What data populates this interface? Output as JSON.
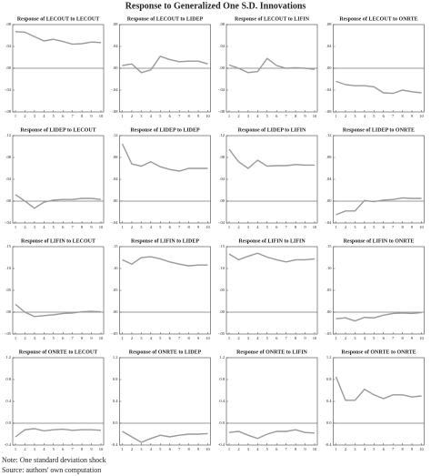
{
  "title": "Response to Generalized One S.D. Innovations",
  "notes": [
    "Note: One standard deviation shock",
    "Source: authors' own computation"
  ],
  "chart_data": [
    {
      "type": "line",
      "title": "Response of LECOUT to LECOUT",
      "x": [
        1,
        2,
        3,
        4,
        5,
        6,
        7,
        8,
        9,
        10
      ],
      "xlim": [
        1,
        10
      ],
      "xticks": [
        1,
        2,
        3,
        4,
        5,
        6,
        7,
        8,
        9,
        10
      ],
      "ylim": [
        -0.08,
        0.08
      ],
      "yticks": [
        {
          "value": 0.08,
          "label": ".08"
        },
        {
          "value": 0.04,
          "label": ".04"
        },
        {
          "value": 0,
          "label": ".00"
        },
        {
          "value": -0.04,
          "label": "-.04"
        },
        {
          "value": -0.08,
          "label": "-.08"
        }
      ],
      "color": "#999999",
      "values": [
        0.067,
        0.066,
        0.058,
        0.05,
        0.053,
        0.049,
        0.044,
        0.045,
        0.048,
        0.047
      ]
    },
    {
      "type": "line",
      "title": "Response of LECOUT to LIDEP",
      "x": [
        1,
        2,
        3,
        4,
        5,
        6,
        7,
        8,
        9,
        10
      ],
      "xlim": [
        1,
        10
      ],
      "xticks": [
        1,
        2,
        3,
        4,
        5,
        6,
        7,
        8,
        9,
        10
      ],
      "ylim": [
        -0.08,
        0.08
      ],
      "yticks": [
        {
          "value": 0.08,
          "label": ".08"
        },
        {
          "value": 0.04,
          "label": ".04"
        },
        {
          "value": 0,
          "label": ".00"
        },
        {
          "value": -0.04,
          "label": "-.04"
        },
        {
          "value": -0.08,
          "label": "-.08"
        }
      ],
      "color": "#999999",
      "values": [
        0.005,
        0.008,
        -0.008,
        -0.003,
        0.022,
        0.016,
        0.012,
        0.013,
        0.013,
        0.008
      ]
    },
    {
      "type": "line",
      "title": "Response of LECOUT to LIFIN",
      "x": [
        1,
        2,
        3,
        4,
        5,
        6,
        7,
        8,
        9,
        10
      ],
      "xlim": [
        1,
        10
      ],
      "xticks": [
        1,
        2,
        3,
        4,
        5,
        6,
        7,
        8,
        9,
        10
      ],
      "ylim": [
        -0.08,
        0.08
      ],
      "yticks": [
        {
          "value": 0.08,
          "label": ".08"
        },
        {
          "value": 0.04,
          "label": ".04"
        },
        {
          "value": 0,
          "label": ".00"
        },
        {
          "value": -0.04,
          "label": "-.04"
        },
        {
          "value": -0.08,
          "label": "-.08"
        }
      ],
      "color": "#999999",
      "values": [
        0.006,
        0.0,
        -0.008,
        -0.006,
        0.018,
        0.005,
        0.0,
        0.001,
        0.0,
        -0.002
      ]
    },
    {
      "type": "line",
      "title": "Response of LECOUT to ONRTE",
      "x": [
        1,
        2,
        3,
        4,
        5,
        6,
        7,
        8,
        9,
        10
      ],
      "xlim": [
        1,
        10
      ],
      "xticks": [
        1,
        2,
        3,
        4,
        5,
        6,
        7,
        8,
        9,
        10
      ],
      "ylim": [
        -0.08,
        0.08
      ],
      "yticks": [
        {
          "value": 0.08,
          "label": ".08"
        },
        {
          "value": 0.04,
          "label": ".04"
        },
        {
          "value": 0,
          "label": ".00"
        },
        {
          "value": -0.04,
          "label": "-.04"
        },
        {
          "value": -0.08,
          "label": "-.08"
        }
      ],
      "color": "#999999",
      "values": [
        -0.024,
        -0.03,
        -0.032,
        -0.032,
        -0.034,
        -0.045,
        -0.046,
        -0.04,
        -0.043,
        -0.045
      ]
    },
    {
      "type": "line",
      "title": "Response of LIDEP to LECOUT",
      "x": [
        1,
        2,
        3,
        4,
        5,
        6,
        7,
        8,
        9,
        10
      ],
      "xlim": [
        1,
        10
      ],
      "xticks": [
        1,
        2,
        3,
        4,
        5,
        6,
        7,
        8,
        9,
        10
      ],
      "ylim": [
        -0.04,
        0.12
      ],
      "yticks": [
        {
          "value": 0.12,
          "label": ".12"
        },
        {
          "value": 0.08,
          "label": ".08"
        },
        {
          "value": 0.04,
          "label": ".04"
        },
        {
          "value": 0,
          "label": ".00"
        },
        {
          "value": -0.04,
          "label": "-.04"
        }
      ],
      "color": "#999999",
      "values": [
        0.012,
        0.0,
        -0.013,
        -0.002,
        0.002,
        0.003,
        0.003,
        0.005,
        0.005,
        0.003
      ]
    },
    {
      "type": "line",
      "title": "Response of LIDEP to LIDEP",
      "x": [
        1,
        2,
        3,
        4,
        5,
        6,
        7,
        8,
        9,
        10
      ],
      "xlim": [
        1,
        10
      ],
      "xticks": [
        1,
        2,
        3,
        4,
        5,
        6,
        7,
        8,
        9,
        10
      ],
      "ylim": [
        -0.04,
        0.12
      ],
      "yticks": [
        {
          "value": 0.12,
          "label": ".12"
        },
        {
          "value": 0.08,
          "label": ".08"
        },
        {
          "value": 0.04,
          "label": ".04"
        },
        {
          "value": 0,
          "label": ".00"
        },
        {
          "value": -0.04,
          "label": "-.04"
        }
      ],
      "color": "#999999",
      "values": [
        0.105,
        0.068,
        0.064,
        0.072,
        0.063,
        0.058,
        0.055,
        0.06,
        0.06,
        0.06
      ]
    },
    {
      "type": "line",
      "title": "Response of LIDEP to LIFIN",
      "x": [
        1,
        2,
        3,
        4,
        5,
        6,
        7,
        8,
        9,
        10
      ],
      "xlim": [
        1,
        10
      ],
      "xticks": [
        1,
        2,
        3,
        4,
        5,
        6,
        7,
        8,
        9,
        10
      ],
      "ylim": [
        -0.04,
        0.12
      ],
      "yticks": [
        {
          "value": 0.12,
          "label": ".12"
        },
        {
          "value": 0.08,
          "label": ".08"
        },
        {
          "value": 0.04,
          "label": ".04"
        },
        {
          "value": 0,
          "label": ".00"
        },
        {
          "value": -0.04,
          "label": "-.04"
        }
      ],
      "color": "#999999",
      "values": [
        0.095,
        0.072,
        0.06,
        0.075,
        0.064,
        0.065,
        0.065,
        0.067,
        0.066,
        0.066
      ]
    },
    {
      "type": "line",
      "title": "Response of LIDEP to ONRTE",
      "x": [
        1,
        2,
        3,
        4,
        5,
        6,
        7,
        8,
        9,
        10
      ],
      "xlim": [
        1,
        10
      ],
      "xticks": [
        1,
        2,
        3,
        4,
        5,
        6,
        7,
        8,
        9,
        10
      ],
      "ylim": [
        -0.04,
        0.12
      ],
      "yticks": [
        {
          "value": 0.12,
          "label": ".12"
        },
        {
          "value": 0.08,
          "label": ".08"
        },
        {
          "value": 0.04,
          "label": ".04"
        },
        {
          "value": 0,
          "label": ".00"
        },
        {
          "value": -0.04,
          "label": "-.04"
        }
      ],
      "color": "#999999",
      "values": [
        -0.025,
        -0.018,
        -0.018,
        0.001,
        -0.001,
        0.002,
        0.003,
        0.006,
        0.005,
        0.005
      ]
    },
    {
      "type": "line",
      "title": "Response of LIFIN to LECOUT",
      "x": [
        1,
        2,
        3,
        4,
        5,
        6,
        7,
        8,
        9,
        10
      ],
      "xlim": [
        1,
        10
      ],
      "xticks": [
        1,
        2,
        3,
        4,
        5,
        6,
        7,
        8,
        9,
        10
      ],
      "ylim": [
        -0.05,
        0.15
      ],
      "yticks": [
        {
          "value": 0.15,
          "label": ".15"
        },
        {
          "value": 0.1,
          "label": ".10"
        },
        {
          "value": 0.05,
          "label": ".05"
        },
        {
          "value": 0,
          "label": ".00"
        },
        {
          "value": -0.05,
          "label": "-.05"
        }
      ],
      "color": "#999999",
      "values": [
        0.018,
        0.0,
        -0.01,
        -0.008,
        -0.006,
        -0.003,
        -0.002,
        0.001,
        0.002,
        0.001
      ]
    },
    {
      "type": "line",
      "title": "Response of LIFIN to LIDEP",
      "x": [
        1,
        2,
        3,
        4,
        5,
        6,
        7,
        8,
        9,
        10
      ],
      "xlim": [
        1,
        10
      ],
      "xticks": [
        1,
        2,
        3,
        4,
        5,
        6,
        7,
        8,
        9,
        10
      ],
      "ylim": [
        -0.05,
        0.15
      ],
      "yticks": [
        {
          "value": 0.15,
          "label": ".15"
        },
        {
          "value": 0.1,
          "label": ".10"
        },
        {
          "value": 0.05,
          "label": ".05"
        },
        {
          "value": 0,
          "label": ".00"
        },
        {
          "value": -0.05,
          "label": "-.05"
        }
      ],
      "color": "#999999",
      "values": [
        0.12,
        0.11,
        0.125,
        0.127,
        0.122,
        0.115,
        0.11,
        0.106,
        0.108,
        0.108
      ]
    },
    {
      "type": "line",
      "title": "Response of LIFIN to LIFIN",
      "x": [
        1,
        2,
        3,
        4,
        5,
        6,
        7,
        8,
        9,
        10
      ],
      "xlim": [
        1,
        10
      ],
      "xticks": [
        1,
        2,
        3,
        4,
        5,
        6,
        7,
        8,
        9,
        10
      ],
      "ylim": [
        -0.05,
        0.15
      ],
      "yticks": [
        {
          "value": 0.15,
          "label": ".15"
        },
        {
          "value": 0.1,
          "label": ".10"
        },
        {
          "value": 0.05,
          "label": ".05"
        },
        {
          "value": 0,
          "label": ".00"
        },
        {
          "value": -0.05,
          "label": "-.05"
        }
      ],
      "color": "#999999",
      "values": [
        0.133,
        0.12,
        0.128,
        0.135,
        0.126,
        0.12,
        0.115,
        0.12,
        0.12,
        0.122
      ]
    },
    {
      "type": "line",
      "title": "Response of LIFIN to ONRTE",
      "x": [
        1,
        2,
        3,
        4,
        5,
        6,
        7,
        8,
        9,
        10
      ],
      "xlim": [
        1,
        10
      ],
      "xticks": [
        1,
        2,
        3,
        4,
        5,
        6,
        7,
        8,
        9,
        10
      ],
      "ylim": [
        -0.05,
        0.15
      ],
      "yticks": [
        {
          "value": 0.15,
          "label": ".15"
        },
        {
          "value": 0.1,
          "label": ".10"
        },
        {
          "value": 0.05,
          "label": ".05"
        },
        {
          "value": 0,
          "label": ".00"
        },
        {
          "value": -0.05,
          "label": "-.05"
        }
      ],
      "color": "#999999",
      "values": [
        -0.015,
        -0.013,
        -0.02,
        -0.012,
        -0.013,
        -0.007,
        -0.003,
        -0.002,
        -0.003,
        -0.001
      ]
    },
    {
      "type": "line",
      "title": "Response of ONRTE to LECOUT",
      "x": [
        1,
        2,
        3,
        4,
        5,
        6,
        7,
        8,
        9,
        10
      ],
      "xlim": [
        1,
        10
      ],
      "xticks": [
        1,
        2,
        3,
        4,
        5,
        6,
        7,
        8,
        9,
        10
      ],
      "ylim": [
        -0.4,
        1.2
      ],
      "yticks": [
        1.2,
        0.8,
        0.4,
        {
          "value": 0,
          "label": "0.0"
        },
        -0.4
      ],
      "color": "#999999",
      "values": [
        -0.25,
        -0.12,
        -0.1,
        -0.14,
        -0.12,
        -0.11,
        -0.13,
        -0.12,
        -0.12,
        -0.13
      ]
    },
    {
      "type": "line",
      "title": "Response of ONRTE to LIDEP",
      "x": [
        1,
        2,
        3,
        4,
        5,
        6,
        7,
        8,
        9,
        10
      ],
      "xlim": [
        1,
        10
      ],
      "xticks": [
        1,
        2,
        3,
        4,
        5,
        6,
        7,
        8,
        9,
        10
      ],
      "ylim": [
        -0.4,
        1.2
      ],
      "yticks": [
        1.2,
        0.8,
        0.4,
        {
          "value": 0,
          "label": "0.0"
        },
        -0.4
      ],
      "color": "#999999",
      "values": [
        -0.15,
        -0.25,
        -0.35,
        -0.28,
        -0.22,
        -0.25,
        -0.22,
        -0.2,
        -0.2,
        -0.19
      ]
    },
    {
      "type": "line",
      "title": "Response of ONRTE to LIFIN",
      "x": [
        1,
        2,
        3,
        4,
        5,
        6,
        7,
        8,
        9,
        10
      ],
      "xlim": [
        1,
        10
      ],
      "xticks": [
        1,
        2,
        3,
        4,
        5,
        6,
        7,
        8,
        9,
        10
      ],
      "ylim": [
        -0.4,
        1.2
      ],
      "yticks": [
        1.2,
        0.8,
        0.4,
        {
          "value": 0,
          "label": "0.0"
        },
        -0.4
      ],
      "color": "#999999",
      "values": [
        -0.17,
        -0.15,
        -0.22,
        -0.28,
        -0.2,
        -0.15,
        -0.15,
        -0.12,
        -0.17,
        -0.18
      ]
    },
    {
      "type": "line",
      "title": "Response of ONRTE to ONRTE",
      "x": [
        1,
        2,
        3,
        4,
        5,
        6,
        7,
        8,
        9,
        10
      ],
      "xlim": [
        1,
        10
      ],
      "xticks": [
        1,
        2,
        3,
        4,
        5,
        6,
        7,
        8,
        9,
        10
      ],
      "ylim": [
        -0.4,
        1.2
      ],
      "yticks": [
        1.2,
        0.8,
        0.4,
        {
          "value": 0,
          "label": "0.0"
        },
        -0.4
      ],
      "color": "#999999",
      "values": [
        0.85,
        0.42,
        0.42,
        0.62,
        0.52,
        0.45,
        0.52,
        0.52,
        0.48,
        0.5
      ]
    }
  ]
}
